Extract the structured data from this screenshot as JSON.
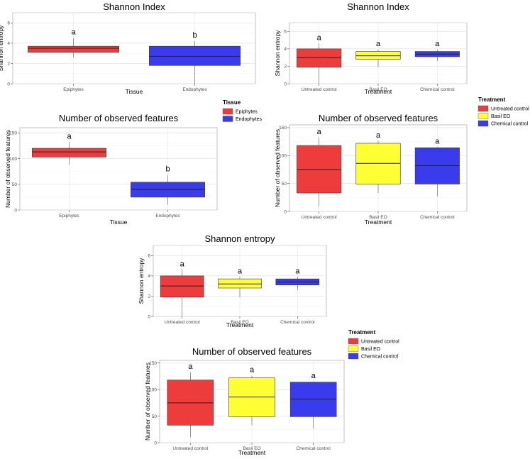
{
  "chart_data": [
    {
      "id": "p1",
      "type": "boxplot",
      "title": "Shannon Index",
      "xlabel": "Tissue",
      "ylabel": "Shannon entropy",
      "ylim": [
        0,
        7
      ],
      "yticks": [
        0,
        2,
        4,
        6
      ],
      "groups": [
        {
          "name": "Epiphytes",
          "color": "#ee3b3b",
          "whisker_low": 2.6,
          "q1": 3.1,
          "median": 3.5,
          "q3": 3.7,
          "whisker_high": 4.5,
          "letter": "a"
        },
        {
          "name": "Endophytes",
          "color": "#3b3bee",
          "whisker_low": 0.0,
          "q1": 1.8,
          "median": 2.7,
          "q3": 3.7,
          "whisker_high": 4.2,
          "letter": "b"
        }
      ]
    },
    {
      "id": "p2",
      "type": "boxplot",
      "title": "Shannon Index",
      "xlabel": "Treatment",
      "ylabel": "Shannon entropy",
      "ylim": [
        0,
        7
      ],
      "yticks": [
        0,
        2,
        4,
        6
      ],
      "groups": [
        {
          "name": "Untreated control",
          "color": "#ee3b3b",
          "whisker_low": 0.0,
          "q1": 1.9,
          "median": 3.0,
          "q3": 4.0,
          "whisker_high": 4.6,
          "letter": "a"
        },
        {
          "name": "Basil EO",
          "color": "#ffff33",
          "whisker_low": 1.9,
          "q1": 2.8,
          "median": 3.2,
          "q3": 3.7,
          "whisker_high": 3.9,
          "letter": "a"
        },
        {
          "name": "Chemical control",
          "color": "#3b3bee",
          "whisker_low": 2.6,
          "q1": 3.1,
          "median": 3.4,
          "q3": 3.7,
          "whisker_high": 3.9,
          "letter": "a"
        }
      ]
    },
    {
      "id": "p3",
      "type": "boxplot",
      "title": "Number of observed features",
      "xlabel": "Tissue",
      "ylabel": "Number of observed features",
      "ylim": [
        0,
        160
      ],
      "yticks": [
        0,
        50,
        100,
        150
      ],
      "groups": [
        {
          "name": "Epiphytes",
          "color": "#ee3b3b",
          "whisker_low": 88,
          "q1": 103,
          "median": 113,
          "q3": 120,
          "whisker_high": 132,
          "letter": "a"
        },
        {
          "name": "Endophytes",
          "color": "#3b3bee",
          "whisker_low": 10,
          "q1": 25,
          "median": 40,
          "q3": 54,
          "whisker_high": 68,
          "letter": "b"
        }
      ]
    },
    {
      "id": "p4",
      "type": "boxplot",
      "title": "Number of observed features",
      "xlabel": "Treatment",
      "ylabel": "Number of observed features",
      "ylim": [
        0,
        155
      ],
      "yticks": [
        0,
        50,
        100,
        150
      ],
      "groups": [
        {
          "name": "Untreated control",
          "color": "#ee3b3b",
          "whisker_low": 10,
          "q1": 33,
          "median": 75,
          "q3": 118,
          "whisker_high": 132,
          "letter": "a"
        },
        {
          "name": "Basil EO",
          "color": "#ffff33",
          "whisker_low": 33,
          "q1": 49,
          "median": 86,
          "q3": 122,
          "whisker_high": 126,
          "letter": "a"
        },
        {
          "name": "Chemical control",
          "color": "#3b3bee",
          "whisker_low": 27,
          "q1": 49,
          "median": 82,
          "q3": 114,
          "whisker_high": 115,
          "letter": "a"
        }
      ]
    },
    {
      "id": "p5",
      "type": "boxplot",
      "title": "Shannon entropy",
      "xlabel": "Treatment",
      "ylabel": "Shannon entropy",
      "ylim": [
        0,
        7
      ],
      "yticks": [
        0,
        2,
        4,
        6
      ],
      "groups": [
        {
          "name": "Untreated control",
          "color": "#ee3b3b",
          "whisker_low": 0.0,
          "q1": 1.9,
          "median": 3.0,
          "q3": 4.0,
          "whisker_high": 4.6,
          "letter": "a"
        },
        {
          "name": "Basil EO",
          "color": "#ffff33",
          "whisker_low": 1.9,
          "q1": 2.8,
          "median": 3.2,
          "q3": 3.7,
          "whisker_high": 3.9,
          "letter": "a"
        },
        {
          "name": "Chemical control",
          "color": "#3b3bee",
          "whisker_low": 2.6,
          "q1": 3.1,
          "median": 3.4,
          "q3": 3.7,
          "whisker_high": 3.9,
          "letter": "a"
        }
      ]
    },
    {
      "id": "p6",
      "type": "boxplot",
      "title": "Number of observed features",
      "xlabel": "Treatment",
      "ylabel": "Number of observed features",
      "ylim": [
        0,
        155
      ],
      "yticks": [
        0,
        50,
        100,
        150
      ],
      "groups": [
        {
          "name": "Untreated control",
          "color": "#ee3b3b",
          "whisker_low": 10,
          "q1": 33,
          "median": 75,
          "q3": 118,
          "whisker_high": 132,
          "letter": "a"
        },
        {
          "name": "Basil EO",
          "color": "#ffff33",
          "whisker_low": 33,
          "q1": 49,
          "median": 86,
          "q3": 122,
          "whisker_high": 126,
          "letter": "a"
        },
        {
          "name": "Chemical control",
          "color": "#3b3bee",
          "whisker_low": 27,
          "q1": 49,
          "median": 82,
          "q3": 114,
          "whisker_high": 115,
          "letter": "a"
        }
      ]
    }
  ],
  "legends": [
    {
      "id": "lg-tissue",
      "title": "Tissue",
      "items": [
        {
          "label": "Epiphytes",
          "color": "#ee3b3b"
        },
        {
          "label": "Endophytes",
          "color": "#3b3bee"
        }
      ]
    },
    {
      "id": "lg-treat1",
      "title": "Treatment",
      "items": [
        {
          "label": "Untreated control",
          "color": "#ee3b3b"
        },
        {
          "label": "Basil EO",
          "color": "#ffff33"
        },
        {
          "label": "Chemical control",
          "color": "#3b3bee"
        }
      ]
    },
    {
      "id": "lg-treat2",
      "title": "Treatment",
      "items": [
        {
          "label": "Untreated control",
          "color": "#ee3b3b"
        },
        {
          "label": "Basil EO",
          "color": "#ffff33"
        },
        {
          "label": "Chemical control",
          "color": "#3b3bee"
        }
      ]
    }
  ]
}
